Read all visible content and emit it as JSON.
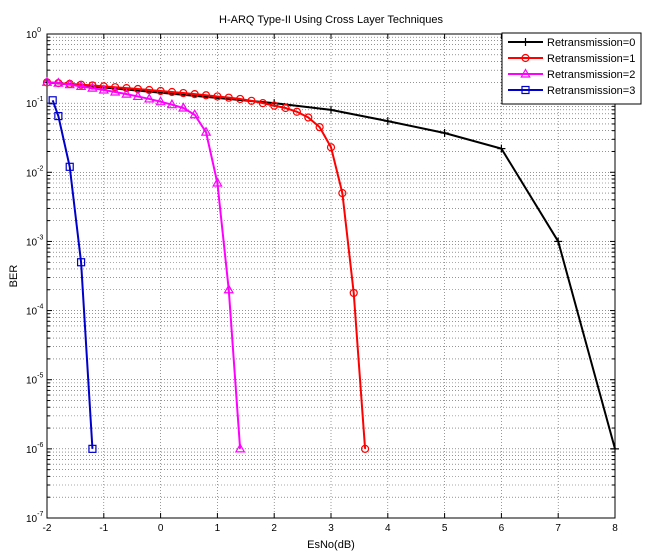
{
  "chart_data": {
    "type": "line",
    "title": "H-ARQ Type-II Using Cross Layer Techniques",
    "xlabel": "EsNo(dB)",
    "ylabel": "BER",
    "xlim": [
      -2,
      8
    ],
    "ylim": [
      1e-07,
      1
    ],
    "yscale": "log",
    "grid": true,
    "legend_position": "top-right",
    "x_ticks": [
      "-2",
      "-1",
      "0",
      "1",
      "2",
      "3",
      "4",
      "5",
      "6",
      "7",
      "8"
    ],
    "y_ticks": [
      {
        "base": "10",
        "exp": "0",
        "value": 1
      },
      {
        "base": "10",
        "exp": "-1",
        "value": 0.1
      },
      {
        "base": "10",
        "exp": "-2",
        "value": 0.01
      },
      {
        "base": "10",
        "exp": "-3",
        "value": 0.001
      },
      {
        "base": "10",
        "exp": "-4",
        "value": 0.0001
      },
      {
        "base": "10",
        "exp": "-5",
        "value": 1e-05
      },
      {
        "base": "10",
        "exp": "-6",
        "value": 1e-06
      },
      {
        "base": "10",
        "exp": "-7",
        "value": 1e-07
      }
    ],
    "series": [
      {
        "name": "Retransmission=0",
        "color": "#000000",
        "marker": "plus",
        "x": [
          -2,
          2,
          3,
          4,
          5,
          6,
          7,
          8
        ],
        "y": [
          0.2,
          0.1,
          0.08,
          0.055,
          0.037,
          0.022,
          0.001,
          1e-06
        ]
      },
      {
        "name": "Retransmission=1",
        "color": "#ff0000",
        "marker": "circle",
        "x": [
          -2,
          -1.8,
          -1.6,
          -1.4,
          -1.2,
          -1,
          -0.8,
          -0.6,
          -0.4,
          -0.2,
          0,
          0.2,
          0.4,
          0.6,
          0.8,
          1,
          1.2,
          1.4,
          1.6,
          1.8,
          2,
          2.2,
          2.4,
          2.6,
          2.8,
          3,
          3.2,
          3.4,
          3.6
        ],
        "y": [
          0.2,
          0.195,
          0.19,
          0.185,
          0.18,
          0.175,
          0.17,
          0.165,
          0.16,
          0.155,
          0.15,
          0.145,
          0.14,
          0.135,
          0.13,
          0.125,
          0.12,
          0.115,
          0.108,
          0.1,
          0.092,
          0.085,
          0.075,
          0.062,
          0.045,
          0.023,
          0.005,
          0.00018,
          1e-06
        ]
      },
      {
        "name": "Retransmission=2",
        "color": "#ff00ff",
        "marker": "triangle",
        "x": [
          -2,
          -1.8,
          -1.6,
          -1.4,
          -1.2,
          -1,
          -0.8,
          -0.6,
          -0.4,
          -0.2,
          0,
          0.2,
          0.4,
          0.6,
          0.8,
          1,
          1.2,
          1.4
        ],
        "y": [
          0.2,
          0.195,
          0.185,
          0.175,
          0.165,
          0.155,
          0.145,
          0.135,
          0.125,
          0.115,
          0.105,
          0.095,
          0.085,
          0.068,
          0.038,
          0.007,
          0.0002,
          1e-06
        ]
      },
      {
        "name": "Retransmission=3",
        "color": "#0000cc",
        "marker": "square",
        "x": [
          -1.9,
          -1.8,
          -1.6,
          -1.4,
          -1.2
        ],
        "y": [
          0.11,
          0.065,
          0.012,
          0.0005,
          1e-06
        ]
      }
    ]
  }
}
